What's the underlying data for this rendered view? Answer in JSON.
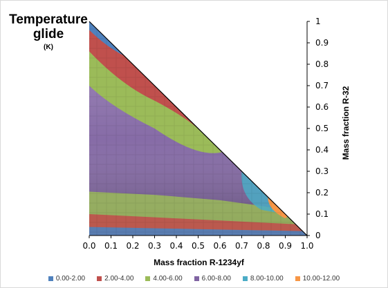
{
  "chart_data": {
    "type": "heatmap",
    "title": "Temperature glide",
    "title_line1": "Temperature",
    "title_line2": "glide",
    "title_unit": "(K)",
    "xlabel": "Mass fraction R-1234yf",
    "ylabel": "Mass fraction R-32",
    "xlim": [
      0,
      1
    ],
    "ylim": [
      0,
      1
    ],
    "xticks": [
      "0.0",
      "0.1",
      "0.2",
      "0.3",
      "0.4",
      "0.5",
      "0.6",
      "0.7",
      "0.8",
      "0.9",
      "1.0"
    ],
    "yticks": [
      "0",
      "0.1",
      "0.2",
      "0.3",
      "0.4",
      "0.5",
      "0.6",
      "0.7",
      "0.8",
      "0.9",
      "1"
    ],
    "domain": "triangular (x + y <= 1)",
    "legend_position": "bottom",
    "bands": [
      {
        "range": "0.00-2.00",
        "color": "#4f81bd"
      },
      {
        "range": "2.00-4.00",
        "color": "#c0504d"
      },
      {
        "range": "4.00-6.00",
        "color": "#9bbb59"
      },
      {
        "range": "6.00-8.00",
        "color": "#8064a2"
      },
      {
        "range": "8.00-10.00",
        "color": "#4bacc6"
      },
      {
        "range": "10.00-12.00",
        "color": "#f79646"
      }
    ]
  }
}
